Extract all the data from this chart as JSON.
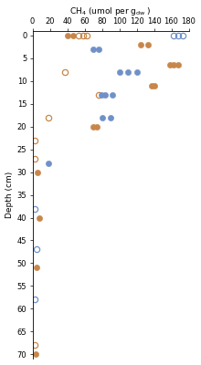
{
  "ylabel": "Depth (cm)",
  "xlim": [
    0,
    180
  ],
  "ylim": [
    71,
    -1
  ],
  "xticks": [
    0,
    20,
    40,
    60,
    80,
    100,
    120,
    140,
    160,
    180
  ],
  "yticks": [
    0,
    5,
    10,
    15,
    20,
    25,
    30,
    35,
    40,
    45,
    50,
    55,
    60,
    65,
    70
  ],
  "brown_filled": [
    [
      40,
      0
    ],
    [
      47,
      0
    ],
    [
      125,
      2
    ],
    [
      133,
      2
    ],
    [
      158,
      6.5
    ],
    [
      163,
      6.5
    ],
    [
      168,
      6.5
    ],
    [
      137,
      11
    ],
    [
      141,
      11
    ],
    [
      70,
      20
    ],
    [
      74,
      20
    ],
    [
      6,
      30
    ],
    [
      8,
      40
    ],
    [
      5,
      51
    ],
    [
      4,
      70
    ]
  ],
  "brown_open": [
    [
      53,
      0
    ],
    [
      58,
      0
    ],
    [
      63,
      0
    ],
    [
      37,
      8
    ],
    [
      76,
      13
    ],
    [
      18,
      18
    ],
    [
      3,
      23
    ],
    [
      3,
      27
    ],
    [
      3,
      68
    ]
  ],
  "blue_filled": [
    [
      70,
      3
    ],
    [
      76,
      3
    ],
    [
      100,
      8
    ],
    [
      110,
      8
    ],
    [
      120,
      8
    ],
    [
      79,
      13
    ],
    [
      84,
      13
    ],
    [
      92,
      13
    ],
    [
      80,
      18
    ],
    [
      90,
      18
    ],
    [
      18,
      28
    ]
  ],
  "blue_open": [
    [
      163,
      0
    ],
    [
      168,
      0
    ],
    [
      173,
      0
    ],
    [
      3,
      38
    ],
    [
      5,
      47
    ],
    [
      3,
      58
    ]
  ],
  "marker_size": 4.5,
  "brown_color": "#c8864a",
  "blue_color": "#7090c8",
  "background": "#ffffff"
}
